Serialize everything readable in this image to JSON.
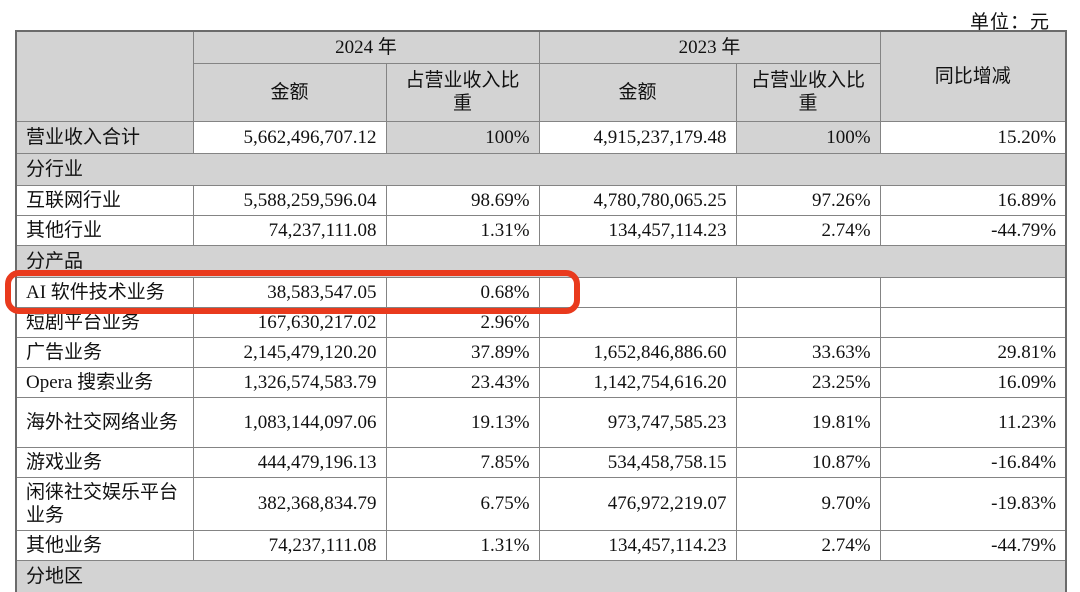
{
  "unit_label": "单位：元",
  "colors": {
    "header_gray": "#d3d3d3",
    "highlight_red": "#e93a1d",
    "border_gray": "#848484"
  },
  "table": {
    "header": {
      "year_2024": "2024 年",
      "year_2023": "2023 年",
      "amount_2024": "金额",
      "pct_2024": "占营业收入比重",
      "amount_2023": "金额",
      "pct_2023": "占营业收入比重",
      "yoy_change": "同比增减"
    },
    "rows": [
      {
        "type": "data",
        "total": true,
        "label": "营业收入合计",
        "amt_2024": "5,662,496,707.12",
        "pct_2024": "100%",
        "amt_2023": "4,915,237,179.48",
        "pct_2023": "100%",
        "yoy": "15.20%"
      },
      {
        "type": "section",
        "label": "分行业"
      },
      {
        "type": "data",
        "label": "互联网行业",
        "amt_2024": "5,588,259,596.04",
        "pct_2024": "98.69%",
        "amt_2023": "4,780,780,065.25",
        "pct_2023": "97.26%",
        "yoy": "16.89%"
      },
      {
        "type": "data",
        "label": "其他行业",
        "amt_2024": "74,237,111.08",
        "pct_2024": "1.31%",
        "amt_2023": "134,457,114.23",
        "pct_2023": "2.74%",
        "yoy": "-44.79%"
      },
      {
        "type": "section",
        "label": "分产品"
      },
      {
        "type": "data",
        "highlight": true,
        "label": "AI 软件技术业务",
        "amt_2024": "38,583,547.05",
        "pct_2024": "0.68%",
        "amt_2023": "",
        "pct_2023": "",
        "yoy": ""
      },
      {
        "type": "data",
        "label": "短剧平台业务",
        "amt_2024": "167,630,217.02",
        "pct_2024": "2.96%",
        "amt_2023": "",
        "pct_2023": "",
        "yoy": ""
      },
      {
        "type": "data",
        "label": "广告业务",
        "amt_2024": "2,145,479,120.20",
        "pct_2024": "37.89%",
        "amt_2023": "1,652,846,886.60",
        "pct_2023": "33.63%",
        "yoy": "29.81%"
      },
      {
        "type": "data",
        "label": "Opera 搜索业务",
        "amt_2024": "1,326,574,583.79",
        "pct_2024": "23.43%",
        "amt_2023": "1,142,754,616.20",
        "pct_2023": "23.25%",
        "yoy": "16.09%"
      },
      {
        "type": "data",
        "two_line": true,
        "label": "海外社交网络业务",
        "amt_2024": "1,083,144,097.06",
        "pct_2024": "19.13%",
        "amt_2023": "973,747,585.23",
        "pct_2023": "19.81%",
        "yoy": "11.23%"
      },
      {
        "type": "data",
        "label": "游戏业务",
        "amt_2024": "444,479,196.13",
        "pct_2024": "7.85%",
        "amt_2023": "534,458,758.15",
        "pct_2023": "10.87%",
        "yoy": "-16.84%"
      },
      {
        "type": "data",
        "two_line": true,
        "label": "闲徕社交娱乐平台业务",
        "amt_2024": "382,368,834.79",
        "pct_2024": "6.75%",
        "amt_2023": "476,972,219.07",
        "pct_2023": "9.70%",
        "yoy": "-19.83%"
      },
      {
        "type": "data",
        "label": "其他业务",
        "amt_2024": "74,237,111.08",
        "pct_2024": "1.31%",
        "amt_2023": "134,457,114.23",
        "pct_2023": "2.74%",
        "yoy": "-44.79%"
      },
      {
        "type": "section",
        "label": "分地区"
      }
    ]
  }
}
